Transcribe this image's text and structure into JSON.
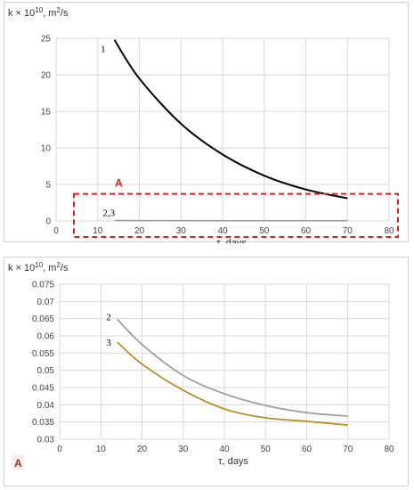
{
  "chart_data": [
    {
      "type": "line",
      "ylabel_base": "k × 10",
      "ylabel_exp": "10",
      "ylabel_unit": ", m",
      "ylabel_unit_exp": "2",
      "ylabel_tail": "/s",
      "xlabel": "τ, days",
      "xlim": [
        0,
        80
      ],
      "ylim": [
        0,
        25
      ],
      "xticks": [
        0,
        10,
        20,
        30,
        40,
        50,
        60,
        70,
        80
      ],
      "yticks": [
        0,
        5,
        10,
        15,
        20,
        25
      ],
      "grid": true,
      "series": [
        {
          "label": "1",
          "color": "#000000",
          "x": [
            14,
            20,
            30,
            40,
            50,
            60,
            70
          ],
          "y": [
            24.8,
            19.5,
            13.3,
            9.1,
            6.2,
            4.3,
            3.1
          ]
        },
        {
          "label": "2,3",
          "color": "#9a9a9a",
          "x": [
            14,
            20,
            30,
            40,
            50,
            60,
            70
          ],
          "y": [
            0.06,
            0.05,
            0.045,
            0.04,
            0.037,
            0.035,
            0.035
          ]
        }
      ],
      "annotations": [
        {
          "text": "A",
          "color": "#e02020"
        }
      ]
    },
    {
      "type": "line",
      "ylabel_base": "k × 10",
      "ylabel_exp": "10",
      "ylabel_unit": ", m",
      "ylabel_unit_exp": "2",
      "ylabel_tail": "/s",
      "xlabel": "τ, days",
      "xlim": [
        0,
        80
      ],
      "ylim": [
        0.03,
        0.075
      ],
      "xticks": [
        0,
        10,
        20,
        30,
        40,
        50,
        60,
        70,
        80
      ],
      "yticks": [
        "0.03",
        "0.035",
        "0.04",
        "0.045",
        "0.05",
        "0.055",
        "0.06",
        "0.065",
        "0.07",
        "0.075"
      ],
      "grid": true,
      "series": [
        {
          "label": "2",
          "color": "#a0a0a0",
          "x": [
            14,
            20,
            30,
            40,
            50,
            60,
            70
          ],
          "y": [
            0.0648,
            0.0575,
            0.0485,
            0.0432,
            0.0398,
            0.0377,
            0.0367
          ]
        },
        {
          "label": "3",
          "color": "#b8902a",
          "x": [
            14,
            20,
            30,
            40,
            50,
            60,
            70
          ],
          "y": [
            0.0582,
            0.0518,
            0.0442,
            0.0388,
            0.0362,
            0.0352,
            0.0341
          ]
        }
      ],
      "annotations": [
        {
          "text": "A",
          "color": "#8b3a1a"
        }
      ]
    }
  ]
}
